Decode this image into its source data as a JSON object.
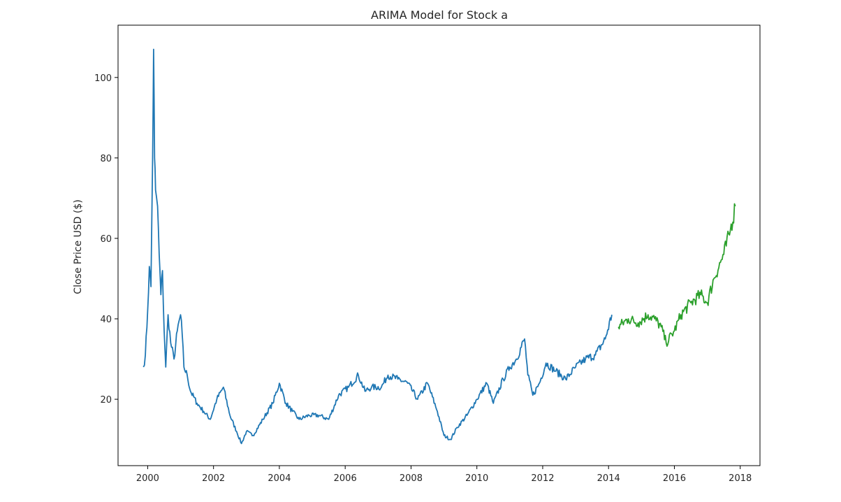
{
  "chart_data": {
    "type": "line",
    "title": "ARIMA Model for Stock a",
    "xlabel": "",
    "ylabel": "Close Price USD ($)",
    "xlim": [
      1999.1,
      2018.6
    ],
    "ylim": [
      3.5,
      113.0
    ],
    "grid": false,
    "legend": "none",
    "x_ticks": [
      2000,
      2002,
      2004,
      2006,
      2008,
      2010,
      2012,
      2014,
      2016,
      2018
    ],
    "x_tick_labels": [
      "2000",
      "2002",
      "2004",
      "2006",
      "2008",
      "2010",
      "2012",
      "2014",
      "2016",
      "2018"
    ],
    "y_ticks": [
      20,
      40,
      60,
      80,
      100
    ],
    "y_tick_labels": [
      "20",
      "40",
      "60",
      "80",
      "100"
    ],
    "series": [
      {
        "color": "#1f77b4",
        "x": [
          1999.87,
          1999.93,
          2000.0,
          2000.05,
          2000.1,
          2000.15,
          2000.18,
          2000.21,
          2000.24,
          2000.3,
          2000.35,
          2000.4,
          2000.45,
          2000.5,
          2000.55,
          2000.62,
          2000.7,
          2000.8,
          2000.9,
          2001.0,
          2001.05,
          2001.1,
          2001.2,
          2001.3,
          2001.5,
          2001.7,
          2001.9,
          2002.1,
          2002.3,
          2002.5,
          2002.7,
          2002.85,
          2003.0,
          2003.2,
          2003.5,
          2003.8,
          2004.0,
          2004.2,
          2004.4,
          2004.6,
          2004.9,
          2005.2,
          2005.5,
          2005.8,
          2006.1,
          2006.4,
          2006.6,
          2006.8,
          2007.1,
          2007.3,
          2007.6,
          2007.9,
          2008.2,
          2008.5,
          2008.8,
          2009.0,
          2009.2,
          2009.4,
          2009.7,
          2010.0,
          2010.3,
          2010.5,
          2010.8,
          2011.0,
          2011.2,
          2011.45,
          2011.55,
          2011.7,
          2011.9,
          2012.1,
          2012.4,
          2012.7,
          2013.0,
          2013.3,
          2013.6,
          2013.9,
          2014.1
        ],
        "y": [
          28,
          31,
          42,
          53,
          48,
          80,
          107,
          80,
          72,
          68,
          56,
          46,
          52,
          37,
          28,
          41,
          34,
          30,
          37,
          41,
          36,
          28,
          26,
          22,
          19,
          17,
          15,
          20,
          23,
          16,
          12,
          9,
          12,
          11,
          15,
          19,
          24,
          19,
          17,
          15,
          16,
          16,
          15,
          21,
          23,
          26,
          22,
          23,
          23,
          26,
          25,
          24,
          20,
          24,
          17,
          11,
          10,
          13,
          16,
          20,
          24,
          19,
          25,
          28,
          30,
          35,
          26,
          21,
          24,
          29,
          27,
          25,
          28,
          30,
          31,
          35,
          41
        ]
      },
      {
        "color": "#2ca02c",
        "x": [
          2014.3,
          2014.6,
          2014.9,
          2015.2,
          2015.4,
          2015.6,
          2015.75,
          2016.0,
          2016.2,
          2016.5,
          2016.8,
          2017.0,
          2017.2,
          2017.5,
          2017.7,
          2017.85
        ],
        "y": [
          38,
          40,
          39,
          41,
          40,
          38,
          34,
          37,
          41,
          44,
          46,
          44,
          50,
          56,
          62,
          68
        ]
      }
    ]
  }
}
